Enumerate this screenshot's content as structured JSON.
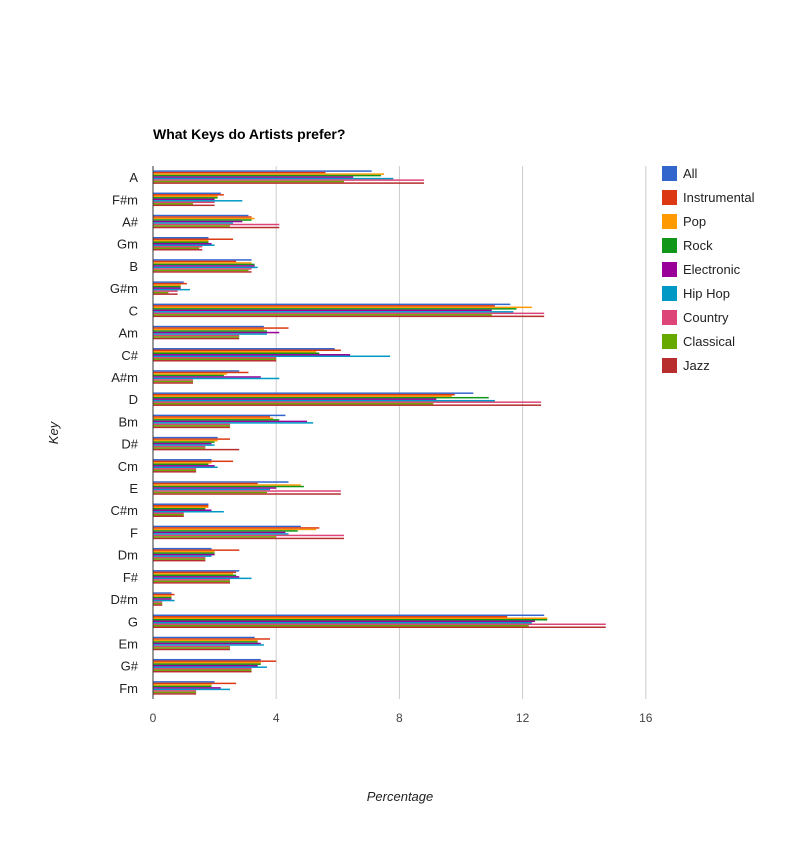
{
  "chart_data": {
    "type": "bar",
    "orientation": "horizontal",
    "title": "What Keys do Artists prefer?",
    "xlabel": "Percentage",
    "ylabel": "Key",
    "xlim": [
      0,
      16
    ],
    "xticks": [
      "0",
      "4",
      "8",
      "12",
      "16"
    ],
    "grid": true,
    "legend_position": "right",
    "categories": [
      "A",
      "F#m",
      "A#",
      "Gm",
      "B",
      "G#m",
      "C",
      "Am",
      "C#",
      "A#m",
      "D",
      "Bm",
      "D#",
      "Cm",
      "E",
      "C#m",
      "F",
      "Dm",
      "F#",
      "D#m",
      "G",
      "Em",
      "G#",
      "Fm"
    ],
    "series": [
      {
        "name": "All",
        "color": "#3366cc",
        "values": [
          7.1,
          2.2,
          3.1,
          1.8,
          3.2,
          1.0,
          11.6,
          3.6,
          5.9,
          2.8,
          10.4,
          4.3,
          2.1,
          1.9,
          4.4,
          1.8,
          4.8,
          1.9,
          2.8,
          0.6,
          12.7,
          3.3,
          3.5,
          2.0
        ]
      },
      {
        "name": "Instrumental",
        "color": "#dc3912",
        "values": [
          5.6,
          2.3,
          3.2,
          2.6,
          2.7,
          1.1,
          11.1,
          4.4,
          6.1,
          3.1,
          9.8,
          3.8,
          2.5,
          2.6,
          3.4,
          1.8,
          5.4,
          2.8,
          2.7,
          0.7,
          11.5,
          3.8,
          4.0,
          2.7
        ]
      },
      {
        "name": "Pop",
        "color": "#ff9900",
        "values": [
          7.5,
          2.1,
          3.3,
          1.8,
          3.2,
          0.9,
          12.3,
          3.6,
          5.3,
          2.4,
          9.7,
          3.9,
          2.1,
          1.9,
          4.8,
          1.8,
          5.3,
          2.0,
          2.6,
          0.6,
          12.8,
          3.4,
          3.5,
          1.9
        ]
      },
      {
        "name": "Rock",
        "color": "#109618",
        "values": [
          7.4,
          2.1,
          3.2,
          1.8,
          3.3,
          0.9,
          11.8,
          3.7,
          5.4,
          2.3,
          10.9,
          4.1,
          2.0,
          1.8,
          4.9,
          1.7,
          4.7,
          2.0,
          2.7,
          0.6,
          12.8,
          3.4,
          3.5,
          1.9
        ]
      },
      {
        "name": "Electronic",
        "color": "#990099",
        "values": [
          6.5,
          2.0,
          2.9,
          1.9,
          3.3,
          0.9,
          11.0,
          4.1,
          6.4,
          3.5,
          9.2,
          5.0,
          1.9,
          2.0,
          4.0,
          1.9,
          4.3,
          2.0,
          2.8,
          0.6,
          12.4,
          3.5,
          3.4,
          2.2
        ]
      },
      {
        "name": "Hip Hop",
        "color": "#0099c6",
        "values": [
          7.8,
          2.9,
          2.6,
          2.0,
          3.4,
          1.2,
          11.7,
          3.7,
          7.7,
          4.1,
          11.1,
          5.2,
          2.0,
          2.1,
          3.8,
          2.3,
          4.4,
          1.9,
          3.2,
          0.7,
          12.3,
          3.6,
          3.7,
          2.5
        ]
      },
      {
        "name": "Country",
        "color": "#dd4477",
        "values": [
          8.8,
          2.0,
          4.1,
          1.6,
          3.2,
          0.8,
          12.7,
          2.8,
          4.0,
          1.3,
          12.6,
          2.5,
          1.7,
          1.4,
          6.1,
          1.0,
          6.2,
          1.7,
          2.5,
          0.3,
          14.7,
          2.5,
          3.2,
          1.4
        ]
      },
      {
        "name": "Classical",
        "color": "#66aa00",
        "values": [
          6.2,
          1.3,
          2.5,
          1.5,
          3.1,
          0.5,
          11.0,
          2.8,
          4.0,
          1.3,
          9.1,
          2.5,
          1.7,
          1.4,
          3.7,
          1.0,
          4.0,
          1.7,
          2.5,
          0.3,
          12.2,
          2.5,
          3.2,
          1.4
        ]
      },
      {
        "name": "Jazz",
        "color": "#b82e2e",
        "values": [
          8.8,
          2.0,
          4.1,
          1.6,
          3.2,
          0.8,
          12.7,
          2.8,
          4.0,
          1.3,
          12.6,
          2.5,
          2.8,
          1.4,
          6.1,
          1.0,
          6.2,
          1.7,
          2.5,
          0.3,
          14.7,
          2.5,
          3.2,
          1.4
        ]
      }
    ]
  }
}
